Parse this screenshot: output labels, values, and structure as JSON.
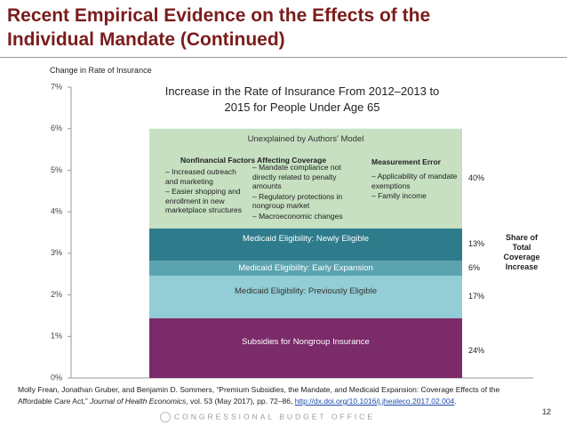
{
  "header": {
    "title": "Recent Empirical Evidence on the Effects of the Individual Mandate (Continued)"
  },
  "chart_data": {
    "type": "bar",
    "stacked": true,
    "title": "Increase in the Rate of Insurance From 2012–2013 to 2015 for People Under Age 65",
    "y_label": "Change in Rate of Insurance",
    "share_title": "Share of Total Coverage Increase",
    "categories": [
      null
    ],
    "ylim": [
      0,
      7
    ],
    "yticks": [
      {
        "value": 0,
        "label": "0%"
      },
      {
        "value": 1,
        "label": "1%"
      },
      {
        "value": 2,
        "label": "2%"
      },
      {
        "value": 3,
        "label": "3%"
      },
      {
        "value": 4,
        "label": "4%"
      },
      {
        "value": 5,
        "label": "5%"
      },
      {
        "value": 6,
        "label": "6%"
      },
      {
        "value": 7,
        "label": "7%"
      }
    ],
    "series": [
      {
        "name": "Subsidies for Nongroup Insurance",
        "color": "#7b2a6a",
        "values": [
          1.44
        ],
        "share_label": "24%"
      },
      {
        "name": "Medicaid Eligibility: Previously Eligible",
        "color": "#93cdd6",
        "values": [
          1.02
        ],
        "share_label": "17%"
      },
      {
        "name": "Medicaid Eligibility: Early Expansion",
        "color": "#5ba4af",
        "values": [
          0.36
        ],
        "share_label": "6%"
      },
      {
        "name": "Medicaid Eligibility: Newly Eligible",
        "color": "#2d7b8b",
        "values": [
          0.78
        ],
        "share_label": "13%"
      },
      {
        "name": "Unexplained by Authors' Model",
        "color": "#c6e0c1",
        "values": [
          2.4
        ],
        "share_label": "40%"
      }
    ],
    "annotations": {
      "nonfinancial": {
        "title": "Nonfinancial Factors Affecting Coverage",
        "col1": [
          "– Increased outreach and marketing",
          "– Easier shopping and enrollment in new marketplace structures"
        ],
        "col2": [
          "– Mandate compliance not directly related to penalty amounts",
          "– Regulatory protections in nongroup market",
          "– Macroeconomic changes"
        ]
      },
      "measurement": {
        "title": "Measurement Error",
        "items": [
          "– Applicability of mandate exemptions",
          "– Family income"
        ]
      }
    }
  },
  "footer": {
    "citation": {
      "text1": "Molly Frean, Jonathan Gruber, and Benjamin D. Sommers, “Premium Subsidies, the Mandate, and Medicaid Expansion: Coverage Effects of the Affordable Care Act,” ",
      "journal": "Journal of Health Economics",
      "text2": ", vol. 53 (May 2017), pp. 72–86, ",
      "link": "http://dx.doi.org/10.1016/j.jhealeco.2017.02.004",
      "text3": "."
    },
    "logo": "CONGRESSIONAL BUDGET OFFICE",
    "page": "12"
  }
}
